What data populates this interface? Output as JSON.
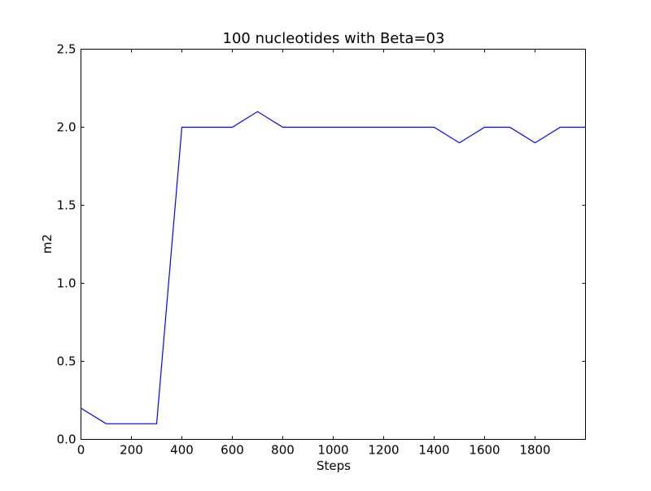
{
  "chart_data": {
    "type": "line",
    "title": "100 nucleotides with Beta=03",
    "xlabel": "Steps",
    "ylabel": "m2",
    "xlim": [
      0,
      2000
    ],
    "ylim": [
      0,
      2.5
    ],
    "x_ticks": [
      0,
      200,
      400,
      600,
      800,
      1000,
      1200,
      1400,
      1600,
      1800
    ],
    "x_tick_labels": [
      "0",
      "200",
      "400",
      "600",
      "800",
      "1000",
      "1200",
      "1400",
      "1600",
      "1800"
    ],
    "y_ticks": [
      0,
      0.5,
      1.0,
      1.5,
      2.0,
      2.5
    ],
    "y_tick_labels": [
      "0.0",
      "0.5",
      "1.0",
      "1.5",
      "2.0",
      "2.5"
    ],
    "grid": false,
    "legend": "none",
    "series": [
      {
        "color": "#0000ff",
        "x": [
          0,
          100,
          200,
          300,
          400,
          500,
          600,
          700,
          800,
          900,
          1000,
          1100,
          1200,
          1300,
          1400,
          1500,
          1600,
          1700,
          1800,
          1900,
          2000
        ],
        "y": [
          0.2,
          0.1,
          0.1,
          0.1,
          2.0,
          2.0,
          2.0,
          2.1,
          2.0,
          2.0,
          2.0,
          2.0,
          2.0,
          2.0,
          2.0,
          1.9,
          2.0,
          2.0,
          1.9,
          2.0,
          2.0
        ]
      }
    ]
  }
}
